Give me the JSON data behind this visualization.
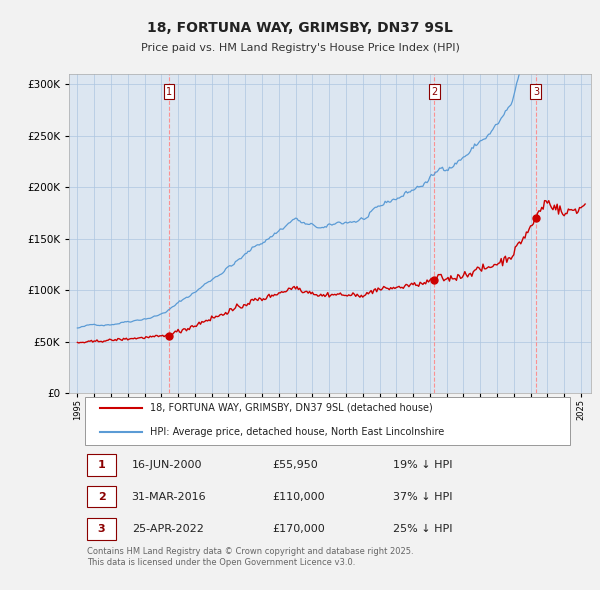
{
  "title": "18, FORTUNA WAY, GRIMSBY, DN37 9SL",
  "subtitle": "Price paid vs. HM Land Registry's House Price Index (HPI)",
  "ylim": [
    0,
    310000
  ],
  "yticks": [
    0,
    50000,
    100000,
    150000,
    200000,
    250000,
    300000
  ],
  "sale_times": [
    2000.458,
    2016.25,
    2022.317
  ],
  "sale_prices": [
    55950,
    110000,
    170000
  ],
  "sale_labels": [
    "1",
    "2",
    "3"
  ],
  "sale_below_hpi_text": [
    "19% ↓ HPI",
    "37% ↓ HPI",
    "25% ↓ HPI"
  ],
  "sale_date_labels": [
    "16-JUN-2000",
    "31-MAR-2016",
    "25-APR-2022"
  ],
  "sale_price_labels": [
    "£55,950",
    "£110,000",
    "£170,000"
  ],
  "legend_line1": "18, FORTUNA WAY, GRIMSBY, DN37 9SL (detached house)",
  "legend_line2": "HPI: Average price, detached house, North East Lincolnshire",
  "footer": "Contains HM Land Registry data © Crown copyright and database right 2025.\nThis data is licensed under the Open Government Licence v3.0.",
  "hpi_color": "#5b9bd5",
  "sale_color": "#cc0000",
  "vline_color": "#ff8888",
  "plot_bg": "#dce6f1",
  "background_color": "#f2f2f2",
  "grid_color": "#aec6e0",
  "label_num_color": "#8b0000"
}
